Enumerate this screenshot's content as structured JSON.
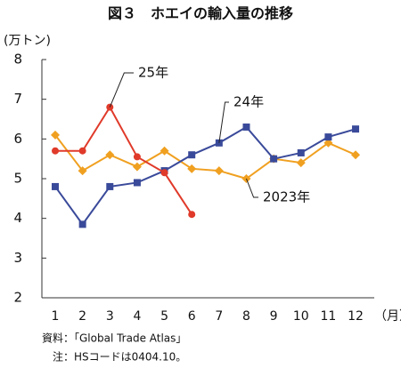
{
  "chart_data": {
    "type": "line",
    "title": "図３　ホエイの輸入量の推移",
    "y_label": "(万トン)",
    "x_label": "（月）",
    "categories": [
      "1",
      "2",
      "3",
      "4",
      "5",
      "6",
      "7",
      "8",
      "9",
      "10",
      "11",
      "12"
    ],
    "series": [
      {
        "name": "2023年",
        "color": "#f0a020",
        "marker": "diamond",
        "values": [
          6.1,
          5.2,
          5.6,
          5.3,
          5.7,
          5.25,
          5.2,
          5.0,
          5.5,
          5.4,
          5.9,
          5.6
        ]
      },
      {
        "name": "24年",
        "color": "#3a4a9a",
        "marker": "square",
        "values": [
          4.8,
          3.85,
          4.8,
          4.9,
          5.2,
          5.6,
          5.9,
          6.3,
          5.5,
          5.65,
          6.05,
          6.25
        ]
      },
      {
        "name": "25年",
        "color": "#e03a2a",
        "marker": "circle",
        "values": [
          5.7,
          5.7,
          6.8,
          5.55,
          5.15,
          4.1,
          null,
          null,
          null,
          null,
          null,
          null
        ]
      }
    ],
    "ylim": [
      2,
      8
    ],
    "yticks": [
      2,
      3,
      4,
      5,
      6,
      7,
      8
    ],
    "notes": [
      "資料：「Global Trade Atlas」",
      "注：HSコードは0404.10。"
    ]
  }
}
